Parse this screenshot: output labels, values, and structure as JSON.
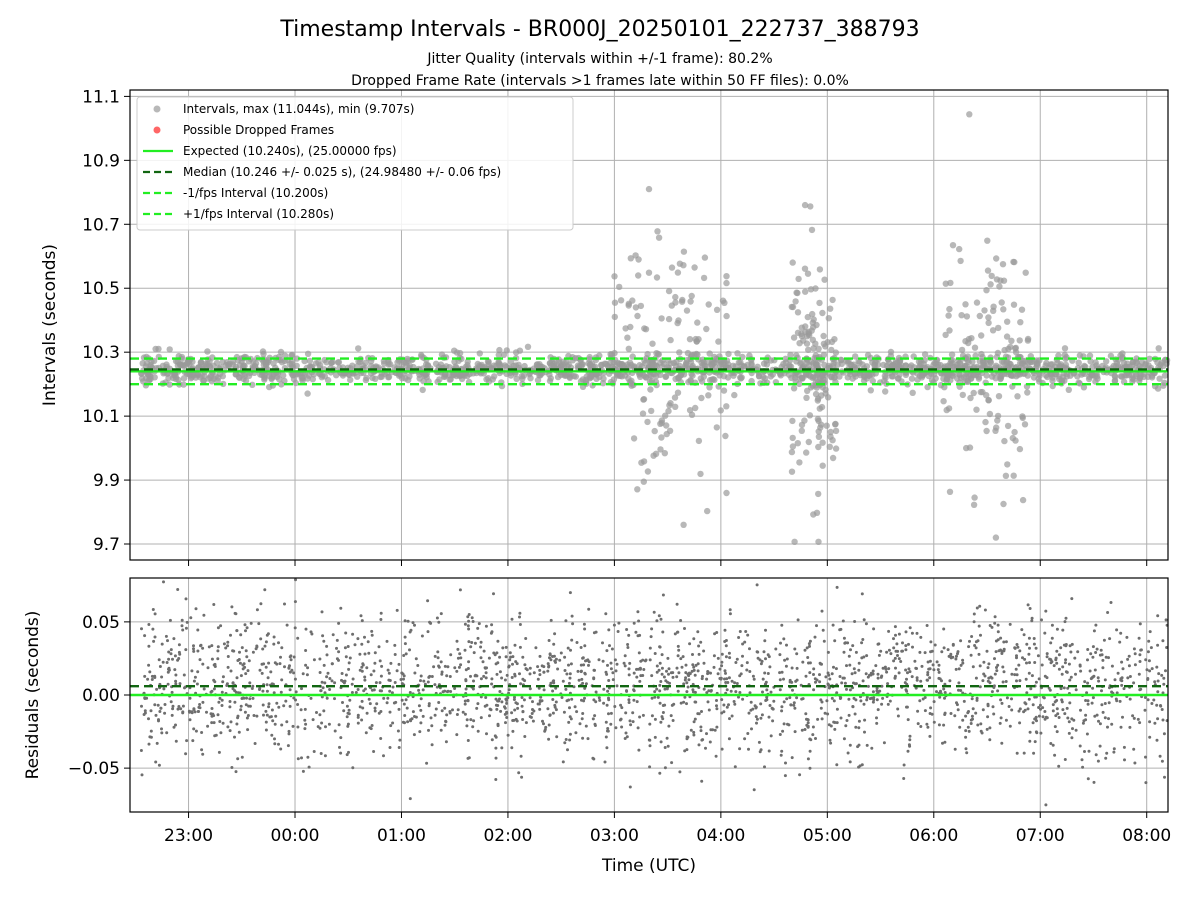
{
  "chart_data": [
    {
      "type": "scatter",
      "title": "Timestamp Intervals - BR000J_20250101_222737_388793",
      "subtitle_lines": [
        "Jitter Quality (intervals within +/-1 frame): 80.2%",
        "Dropped Frame Rate (intervals >1 frames late within 50 FF files): 0.0%"
      ],
      "ylabel": "Intervals (seconds)",
      "xlim": [
        "22:27",
        "08:12"
      ],
      "ylim": [
        9.65,
        11.12
      ],
      "yticks": [
        9.7,
        9.9,
        10.1,
        10.3,
        10.5,
        10.7,
        10.9,
        11.1
      ],
      "ytick_labels": [
        "9.7",
        "9.9",
        "10.1",
        "10.3",
        "10.5",
        "10.7",
        "10.9",
        "11.1"
      ],
      "grid": true,
      "legend_position": "upper-left",
      "legend": [
        "Intervals, max (11.044s), min (9.707s)",
        "Possible Dropped Frames",
        "Expected (10.240s), (25.00000 fps)",
        "Median (10.246 +/- 0.025 s), (24.98480 +/- 0.06 fps)",
        "-1/fps Interval (10.200s)",
        "+1/fps Interval (10.280s)"
      ],
      "reference_lines": [
        {
          "name": "Expected",
          "value": 10.24,
          "color": "#22ee22",
          "style": "solid"
        },
        {
          "name": "Median",
          "value": 10.246,
          "color": "#116611",
          "style": "dashed"
        },
        {
          "name": "-1/fps",
          "value": 10.2,
          "color": "#22ee22",
          "style": "dashed"
        },
        {
          "name": "+1/fps",
          "value": 10.28,
          "color": "#22ee22",
          "style": "dashed"
        }
      ],
      "series": [
        {
          "marker_color": "#9a9a9a",
          "x_range": [
            "22:33",
            "08:12"
          ],
          "median": 10.246,
          "std": 0.025
        },
        {
          "marker_color": "#ff6666",
          "values": []
        }
      ],
      "outlier_clusters": [
        {
          "x_range": [
            "03:00",
            "04:05"
          ],
          "y_range": [
            9.76,
            10.81
          ]
        },
        {
          "x_range": [
            "04:40",
            "05:05"
          ],
          "y_range": [
            9.707,
            10.76
          ]
        },
        {
          "x_range": [
            "06:05",
            "06:55"
          ],
          "y_range": [
            9.72,
            11.044
          ]
        }
      ],
      "extrema": {
        "max": 11.044,
        "min": 9.707
      }
    },
    {
      "type": "scatter",
      "xlabel": "Time (UTC)",
      "ylabel": "Residuals (seconds)",
      "xlim": [
        "22:27",
        "08:12"
      ],
      "ylim": [
        -0.08,
        0.08
      ],
      "yticks": [
        -0.05,
        0.0,
        0.05
      ],
      "ytick_labels": [
        "−0.05",
        "0.00",
        "0.05"
      ],
      "xtick_labels": [
        "23:00",
        "00:00",
        "01:00",
        "02:00",
        "03:00",
        "04:00",
        "05:00",
        "06:00",
        "07:00",
        "08:00"
      ],
      "grid": true,
      "reference_lines": [
        {
          "name": "Expected",
          "value": 0.0,
          "color": "#22ee22",
          "style": "solid"
        },
        {
          "name": "Median",
          "value": 0.006,
          "color": "#116611",
          "style": "dashed"
        }
      ],
      "series": [
        {
          "marker_color": "#6e6e6e",
          "x_range": [
            "22:33",
            "08:12"
          ],
          "mean": 0.006,
          "std": 0.025
        }
      ]
    }
  ]
}
